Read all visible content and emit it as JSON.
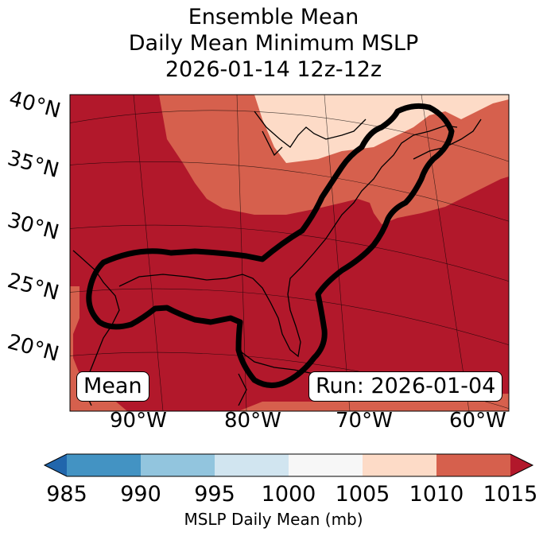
{
  "title": {
    "line1": "Ensemble Mean",
    "line2": "Daily Mean Minimum MSLP",
    "line3": "2026-01-14 12z-12z"
  },
  "map": {
    "lat_labels": [
      "40°N",
      "35°N",
      "30°N",
      "25°N",
      "20°N"
    ],
    "lon_labels": [
      "90°W",
      "80°W",
      "70°W",
      "60°W"
    ],
    "mean_box": "Mean",
    "run_box": "Run: 2026-01-04",
    "contour_color": "#000000"
  },
  "colorbar": {
    "label": "MSLP Daily Mean (mb)",
    "ticks": [
      "985",
      "990",
      "995",
      "1000",
      "1005",
      "1010",
      "1015"
    ],
    "colors": [
      "#2166ac",
      "#4393c3",
      "#92c5de",
      "#d1e5f0",
      "#f7f7f7",
      "#fddbc7",
      "#d6604d",
      "#b2182b"
    ]
  },
  "fill_colors": {
    "c1015": "#b2182b",
    "c1010": "#d6604d",
    "c1005": "#fddbc7"
  }
}
